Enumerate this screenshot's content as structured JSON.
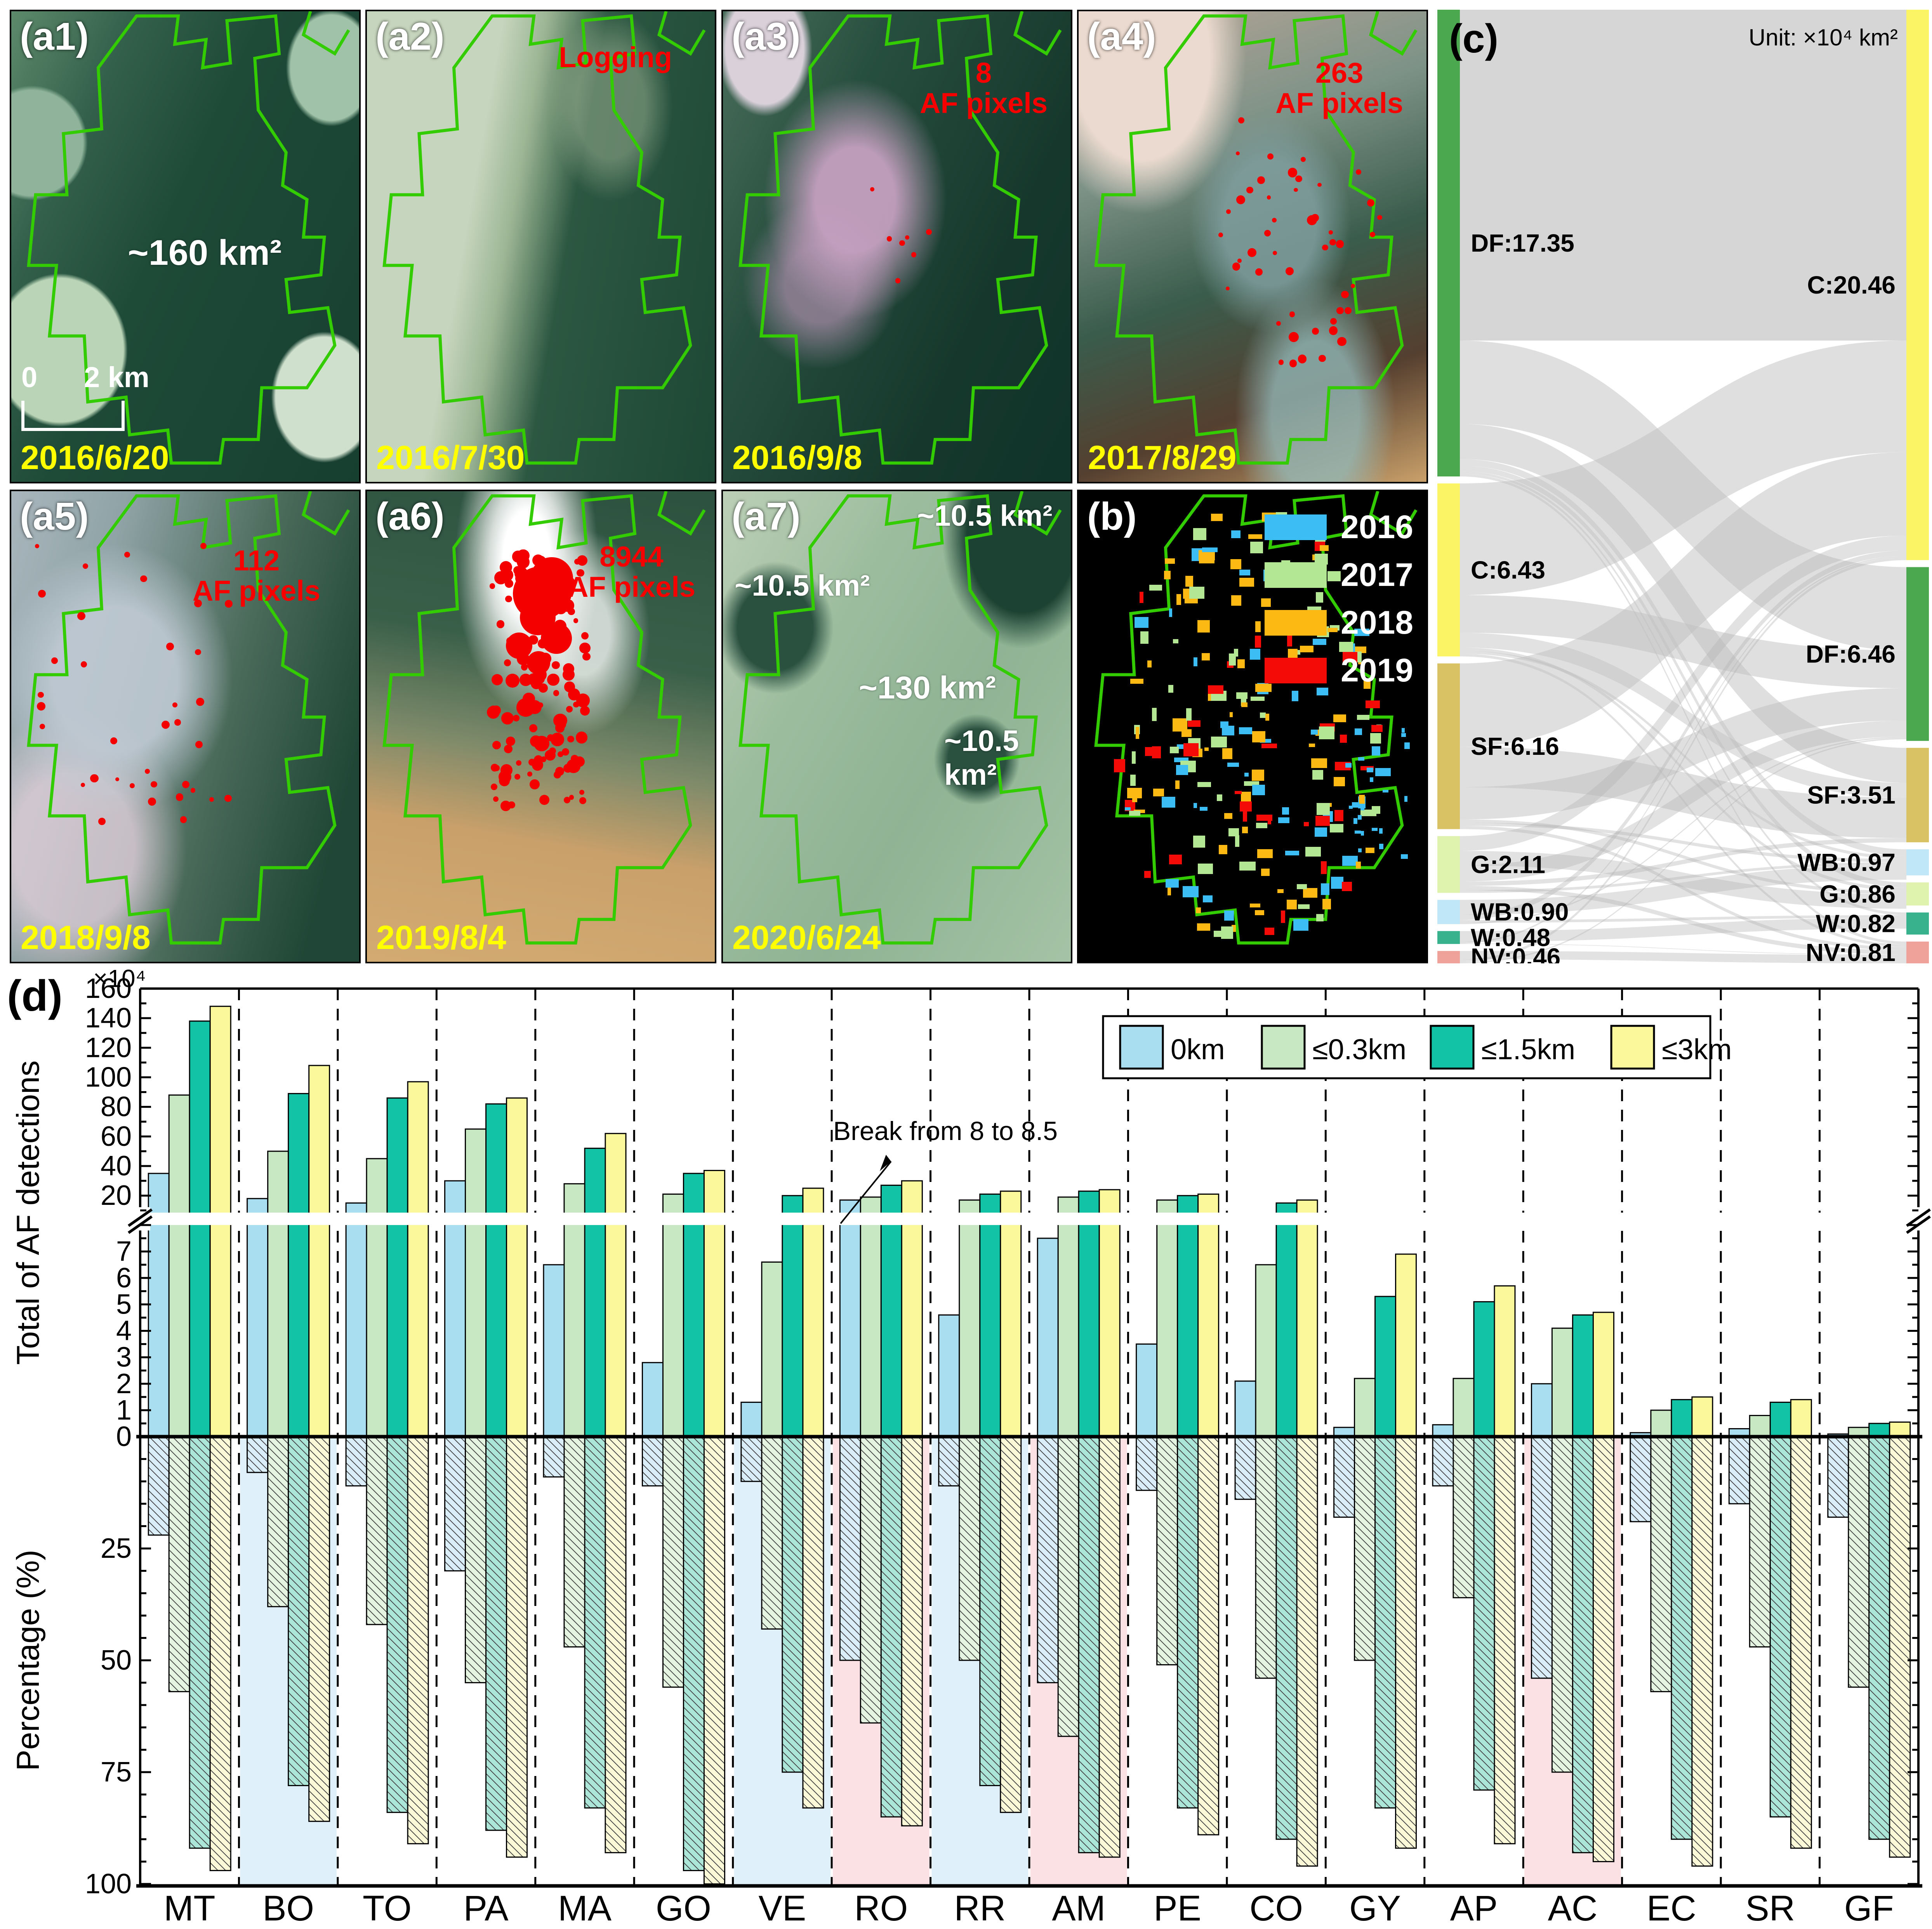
{
  "panels": {
    "a": [
      {
        "id": "(a1)",
        "date": "2016/6/20",
        "annotation": "~160 km²",
        "scalebar_zero": "0",
        "scalebar_dist": "2 km"
      },
      {
        "id": "(a2)",
        "date": "2016/7/30",
        "annotation": "Logging"
      },
      {
        "id": "(a3)",
        "date": "2016/9/8",
        "af_count": "8",
        "af_label": "AF pixels"
      },
      {
        "id": "(a4)",
        "date": "2017/8/29",
        "af_count": "263",
        "af_label": "AF pixels"
      },
      {
        "id": "(a5)",
        "date": "2018/9/8",
        "af_count": "112",
        "af_label": "AF pixels"
      },
      {
        "id": "(a6)",
        "date": "2019/8/4",
        "af_count": "8944",
        "af_label": "AF pixels"
      },
      {
        "id": "(a7)",
        "date": "2020/6/24",
        "annotations": [
          "~10.5 km²",
          "~10.5 km²",
          "~130 km²",
          "~10.5 km²"
        ]
      }
    ],
    "b": {
      "id": "(b)",
      "legend": [
        {
          "label": "2016",
          "color": "#3cbdf3"
        },
        {
          "label": "2017",
          "color": "#b3e794"
        },
        {
          "label": "2018",
          "color": "#fcb813"
        },
        {
          "label": "2019",
          "color": "#f40b08"
        }
      ]
    }
  },
  "chart_data": [
    {
      "type": "sankey",
      "title": "(c)",
      "unit_label": "Unit: ×10⁴ km²",
      "left_nodes": [
        {
          "id": "DF",
          "label": "DF:17.35",
          "value": 17.35,
          "color": "#4ba84f"
        },
        {
          "id": "C",
          "label": "C:6.43",
          "value": 6.43,
          "color": "#fbf566"
        },
        {
          "id": "SF",
          "label": "SF:6.16",
          "value": 6.16,
          "color": "#d8c263"
        },
        {
          "id": "G",
          "label": "G:2.11",
          "value": 2.11,
          "color": "#dff2ae"
        },
        {
          "id": "WB",
          "label": "WB:0.90",
          "value": 0.9,
          "color": "#bfe7f7"
        },
        {
          "id": "W",
          "label": "W:0.48",
          "value": 0.48,
          "color": "#38b18d"
        },
        {
          "id": "NV",
          "label": "NV:0.46",
          "value": 0.46,
          "color": "#efa29a"
        }
      ],
      "right_nodes": [
        {
          "id": "C",
          "label": "C:20.46",
          "value": 20.46,
          "color": "#fbf566"
        },
        {
          "id": "DF",
          "label": "DF:6.46",
          "value": 6.46,
          "color": "#4ba84f"
        },
        {
          "id": "SF",
          "label": "SF:3.51",
          "value": 3.51,
          "color": "#d8c263"
        },
        {
          "id": "WB",
          "label": "WB:0.97",
          "value": 0.97,
          "color": "#bfe7f7"
        },
        {
          "id": "G",
          "label": "G:0.86",
          "value": 0.86,
          "color": "#dff2ae"
        },
        {
          "id": "W",
          "label": "W:0.82",
          "value": 0.82,
          "color": "#38b18d"
        },
        {
          "id": "NV",
          "label": "NV:0.81",
          "value": 0.81,
          "color": "#efa29a"
        }
      ],
      "flows": [
        [
          "DF",
          "C",
          12.3
        ],
        [
          "DF",
          "DF",
          3.1
        ],
        [
          "DF",
          "SF",
          1.3
        ],
        [
          "DF",
          "WB",
          0.25
        ],
        [
          "DF",
          "G",
          0.2
        ],
        [
          "DF",
          "W",
          0.1
        ],
        [
          "DF",
          "NV",
          0.1
        ],
        [
          "C",
          "C",
          4.15
        ],
        [
          "C",
          "DF",
          1.4
        ],
        [
          "C",
          "SF",
          0.55
        ],
        [
          "C",
          "G",
          0.12
        ],
        [
          "C",
          "WB",
          0.11
        ],
        [
          "C",
          "NV",
          0.1
        ],
        [
          "SF",
          "C",
          3.1
        ],
        [
          "SF",
          "SF",
          1.5
        ],
        [
          "SF",
          "DF",
          1.2
        ],
        [
          "SF",
          "G",
          0.12
        ],
        [
          "SF",
          "WB",
          0.12
        ],
        [
          "SF",
          "NV",
          0.12
        ],
        [
          "G",
          "C",
          0.55
        ],
        [
          "G",
          "G",
          0.54
        ],
        [
          "G",
          "DF",
          0.6
        ],
        [
          "G",
          "SF",
          0.16
        ],
        [
          "G",
          "NV",
          0.16
        ],
        [
          "G",
          "WB",
          0.1
        ],
        [
          "WB",
          "WB",
          0.55
        ],
        [
          "WB",
          "C",
          0.2
        ],
        [
          "WB",
          "W",
          0.1
        ],
        [
          "WB",
          "DF",
          0.05
        ],
        [
          "W",
          "W",
          0.4
        ],
        [
          "W",
          "C",
          0.06
        ],
        [
          "W",
          "NV",
          0.02
        ],
        [
          "NV",
          "NV",
          0.31
        ],
        [
          "NV",
          "C",
          0.1
        ],
        [
          "NV",
          "DF",
          0.05
        ]
      ]
    },
    {
      "type": "bar",
      "title": "(d)",
      "unit_label": "×10⁴",
      "ylabel_top": "Total of AF detections",
      "ylabel_bottom": "Percentage (%)",
      "break_annotation": "Break from 8 to 8.5",
      "axis_break": {
        "from": 8,
        "to": 8.5
      },
      "ylim_top": [
        0,
        160
      ],
      "ylim_bottom_pct": [
        0,
        100
      ],
      "count_major_ticks": [
        20,
        40,
        60,
        80,
        100,
        120,
        140,
        160
      ],
      "count_lower_ticks": [
        0,
        1,
        2,
        3,
        4,
        5,
        6,
        7
      ],
      "pct_ticks": [
        25,
        50,
        75,
        100
      ],
      "categories": [
        "MT",
        "BO",
        "TO",
        "PA",
        "MA",
        "GO",
        "VE",
        "RO",
        "RR",
        "AM",
        "PE",
        "CO",
        "GY",
        "AP",
        "AC",
        "EC",
        "SR",
        "GF"
      ],
      "series": [
        {
          "name": "0km",
          "color": "#a9def1",
          "hatch_fill": "#d9eef8",
          "counts": [
            35,
            18,
            15,
            30,
            6.5,
            2.8,
            1.3,
            17,
            4.6,
            7.5,
            3.5,
            2.1,
            0.35,
            0.45,
            2.0,
            0.15,
            0.3,
            0.1
          ],
          "percentages": [
            22,
            8,
            11,
            30,
            9,
            11,
            10,
            50,
            11,
            55,
            12,
            14,
            18,
            11,
            54,
            19,
            15,
            18
          ]
        },
        {
          "name": "≤0.3km",
          "color": "#c7e8c2",
          "hatch_fill": "#e4f4e1",
          "counts": [
            88,
            50,
            45,
            65,
            28,
            21,
            6.6,
            19,
            17,
            19,
            17,
            6.5,
            2.2,
            2.2,
            4.1,
            1.0,
            0.8,
            0.35
          ],
          "percentages": [
            57,
            38,
            42,
            55,
            47,
            56,
            43,
            64,
            50,
            67,
            51,
            54,
            50,
            36,
            75,
            57,
            47,
            56
          ]
        },
        {
          "name": "≤1.5km",
          "color": "#12c3a6",
          "hatch_fill": "#abe6d9",
          "counts": [
            138,
            89,
            86,
            82,
            52,
            35,
            20,
            27,
            21,
            23,
            20,
            15,
            5.3,
            5.1,
            4.6,
            1.4,
            1.3,
            0.5
          ],
          "percentages": [
            92,
            78,
            84,
            88,
            83,
            97,
            75,
            85,
            78,
            93,
            83,
            90,
            83,
            79,
            93,
            90,
            85,
            90
          ]
        },
        {
          "name": "≤3km",
          "color": "#fbf89b",
          "hatch_fill": "#fbf9d8",
          "counts": [
            148,
            108,
            97,
            86,
            62,
            37,
            25,
            30,
            23,
            24,
            21,
            17,
            6.9,
            5.7,
            4.7,
            1.5,
            1.4,
            0.55
          ],
          "percentages": [
            97,
            86,
            91,
            94,
            93,
            100,
            83,
            87,
            84,
            94,
            89,
            96,
            92,
            91,
            95,
            96,
            92,
            94
          ]
        }
      ],
      "highlight_columns": [
        {
          "category": "BO",
          "color": "#e0f0fa"
        },
        {
          "category": "VE",
          "color": "#e0f0fa"
        },
        {
          "category": "RR",
          "color": "#e0f0fa"
        },
        {
          "category": "RO",
          "color": "#fbe0e4"
        },
        {
          "category": "AM",
          "color": "#fbe0e4"
        },
        {
          "category": "AC",
          "color": "#fbe0e4"
        }
      ]
    }
  ]
}
